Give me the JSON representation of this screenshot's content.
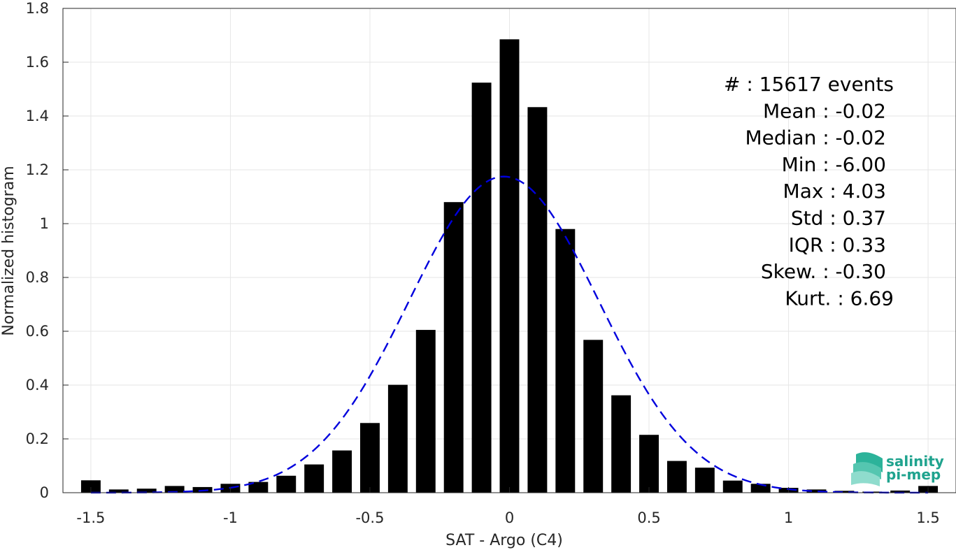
{
  "chart_data": {
    "type": "bar",
    "xlabel": "SAT - Argo (C4)",
    "ylabel": "Normalized histogram",
    "xlim": [
      -1.6,
      1.6
    ],
    "ylim": [
      0,
      1.8
    ],
    "grid": true,
    "xticks": [
      -1.5,
      -1,
      -0.5,
      0,
      0.5,
      1,
      1.5
    ],
    "xtick_labels": [
      "-1.5",
      "-1",
      "-0.5",
      "0",
      "0.5",
      "1",
      "1.5"
    ],
    "yticks": [
      0,
      0.2,
      0.4,
      0.6,
      0.8,
      1,
      1.2,
      1.4,
      1.6,
      1.8
    ],
    "ytick_labels": [
      "0",
      "0.2",
      "0.4",
      "0.6",
      "0.8",
      "1",
      "1.2",
      "1.4",
      "1.6",
      "1.8"
    ],
    "bin_centers": [
      -1.5,
      -1.4,
      -1.3,
      -1.2,
      -1.1,
      -1.0,
      -0.9,
      -0.8,
      -0.7,
      -0.6,
      -0.5,
      -0.4,
      -0.3,
      -0.2,
      -0.1,
      0.0,
      0.1,
      0.2,
      0.3,
      0.4,
      0.5,
      0.6,
      0.7,
      0.8,
      0.9,
      1.0,
      1.1,
      1.2,
      1.3,
      1.4,
      1.5
    ],
    "values": [
      0.046,
      0.012,
      0.015,
      0.025,
      0.021,
      0.033,
      0.04,
      0.063,
      0.105,
      0.157,
      0.259,
      0.401,
      0.605,
      1.08,
      1.524,
      1.685,
      1.433,
      0.98,
      0.568,
      0.362,
      0.215,
      0.118,
      0.093,
      0.045,
      0.033,
      0.018,
      0.012,
      0.007,
      0.004,
      0.008,
      0.025
    ],
    "bar_color": "#000000",
    "fit": {
      "style": "dashed",
      "color": "#0000dd",
      "mean": -0.02,
      "std": 0.34,
      "peak": 1.175
    },
    "stats": [
      "#  : 15617 events",
      "Mean : -0.02",
      "Median : -0.02",
      "Min : -6.00",
      "Max : 4.03",
      "Std : 0.37",
      "IQR : 0.33",
      "Skew. : -0.30",
      "Kurt. : 6.69"
    ]
  },
  "logo": {
    "line1": "salinity",
    "line2": "pi-mep",
    "color": "#1fa38e"
  }
}
